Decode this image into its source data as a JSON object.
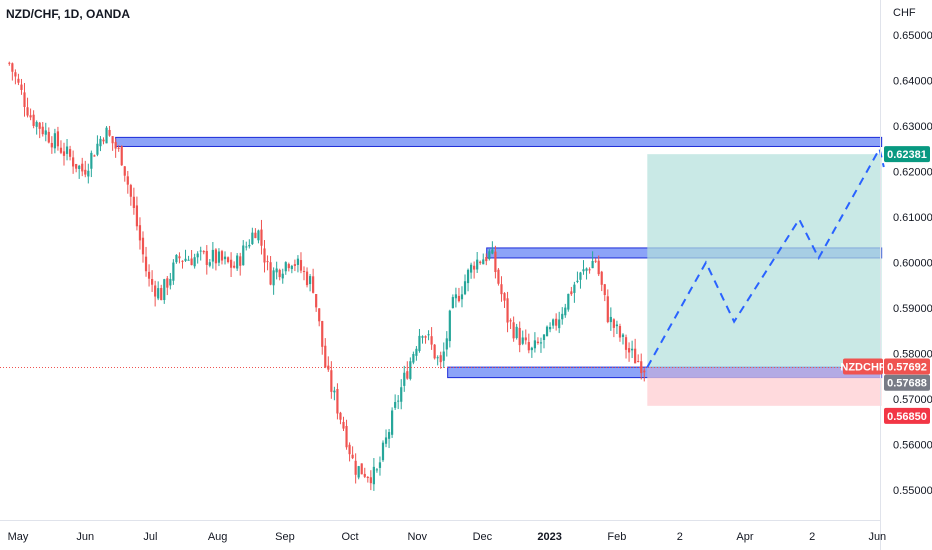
{
  "header": {
    "symbol_title": "NZD/CHF, 1D, OANDA",
    "currency": "CHF"
  },
  "colors": {
    "up": "#26a69a",
    "down": "#ef5350",
    "zone_fill": "#5b7cf5",
    "zone_stroke": "#1c2bd8",
    "target_fill": "#b2dfdb",
    "stop_fill": "#ffcdd2",
    "projection": "#2962ff",
    "price_line": "#ef5350",
    "target_label": "#089981",
    "symbol_label": "#ef5350",
    "entry_label": "#787b86",
    "stop_label": "#f23645",
    "axis_text": "#131722"
  },
  "chart_data": {
    "type": "candlestick",
    "title": "NZD/CHF, 1D, OANDA",
    "y_unit": "CHF",
    "ylim": [
      0.5445,
      0.6535
    ],
    "y_ticks": [
      "0.65000",
      "0.64000",
      "0.63000",
      "0.62000",
      "0.61000",
      "0.60000",
      "0.59000",
      "0.58000",
      "0.57000",
      "0.56000",
      "0.55000"
    ],
    "x_ticks": [
      {
        "label": "May",
        "day": 0,
        "bold": false
      },
      {
        "label": "Jun",
        "day": 31,
        "bold": false
      },
      {
        "label": "Jul",
        "day": 61,
        "bold": false
      },
      {
        "label": "Aug",
        "day": 92,
        "bold": false
      },
      {
        "label": "Sep",
        "day": 123,
        "bold": false
      },
      {
        "label": "Oct",
        "day": 153,
        "bold": false
      },
      {
        "label": "Nov",
        "day": 184,
        "bold": false
      },
      {
        "label": "Dec",
        "day": 214,
        "bold": false
      },
      {
        "label": "2023",
        "day": 245,
        "bold": true
      },
      {
        "label": "Feb",
        "day": 276,
        "bold": false
      },
      {
        "label": "2",
        "day": 305,
        "bold": false
      },
      {
        "label": "Apr",
        "day": 335,
        "bold": false
      },
      {
        "label": "2",
        "day": 366,
        "bold": false
      },
      {
        "label": "Jun",
        "day": 396,
        "bold": false
      }
    ],
    "close_path": [
      [
        -5,
        0.645
      ],
      [
        6,
        0.632
      ],
      [
        18,
        0.626
      ],
      [
        30,
        0.62
      ],
      [
        40,
        0.629
      ],
      [
        48,
        0.623
      ],
      [
        54,
        0.61
      ],
      [
        60,
        0.596
      ],
      [
        66,
        0.593
      ],
      [
        74,
        0.601
      ],
      [
        90,
        0.601
      ],
      [
        100,
        0.599
      ],
      [
        110,
        0.608
      ],
      [
        116,
        0.597
      ],
      [
        126,
        0.601
      ],
      [
        136,
        0.595
      ],
      [
        142,
        0.576
      ],
      [
        150,
        0.564
      ],
      [
        155,
        0.555
      ],
      [
        165,
        0.553
      ],
      [
        175,
        0.57
      ],
      [
        186,
        0.586
      ],
      [
        195,
        0.577
      ],
      [
        200,
        0.59
      ],
      [
        210,
        0.6
      ],
      [
        218,
        0.602
      ],
      [
        226,
        0.587
      ],
      [
        236,
        0.58
      ],
      [
        246,
        0.585
      ],
      [
        256,
        0.595
      ],
      [
        266,
        0.601
      ],
      [
        272,
        0.588
      ],
      [
        282,
        0.58
      ],
      [
        289,
        0.577
      ]
    ],
    "zones": [
      {
        "name": "upper-resistance",
        "day_from": 45,
        "day_to": 398,
        "top": 0.6275,
        "bottom": 0.6255
      },
      {
        "name": "middle-resistance",
        "day_from": 216,
        "day_to": 398,
        "top": 0.6032,
        "bottom": 0.601
      },
      {
        "name": "support",
        "day_from": 198,
        "day_to": 398,
        "top": 0.577,
        "bottom": 0.5747
      }
    ],
    "position": {
      "day_from": 290,
      "day_to": 398,
      "entry": 0.57688,
      "target": 0.62381,
      "stop": 0.5685
    },
    "projection_path": [
      [
        290,
        0.577
      ],
      [
        317,
        0.6
      ],
      [
        330,
        0.587
      ],
      [
        360,
        0.6095
      ],
      [
        369,
        0.601
      ],
      [
        397,
        0.625
      ],
      [
        399,
        0.621
      ]
    ],
    "current_price": 0.57692,
    "price_labels": {
      "target": "0.62381",
      "symbol": "NZDCHF",
      "current": "0.57692",
      "entry": "0.57688",
      "stop": "0.56850"
    }
  }
}
